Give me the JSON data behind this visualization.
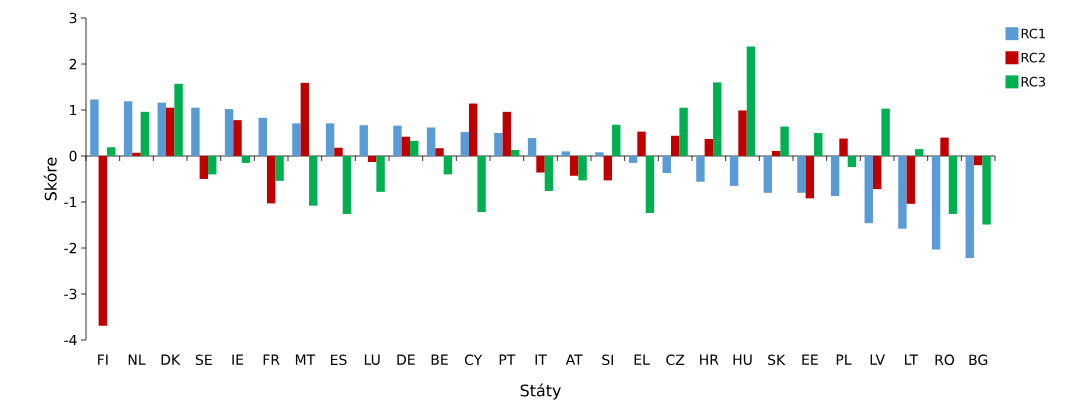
{
  "chart_data": {
    "type": "bar",
    "xlabel": "Státy",
    "ylabel": "Skóre",
    "categories": [
      "FI",
      "NL",
      "DK",
      "SE",
      "IE",
      "FR",
      "MT",
      "ES",
      "LU",
      "DE",
      "BE",
      "CY",
      "PT",
      "IT",
      "AT",
      "SI",
      "EL",
      "CZ",
      "HR",
      "HU",
      "SK",
      "EE",
      "PL",
      "LV",
      "LT",
      "RO",
      "BG"
    ],
    "series": [
      {
        "name": "RC1",
        "color": "#5b9bd5",
        "values": [
          1.23,
          1.19,
          1.16,
          1.05,
          1.02,
          0.83,
          0.71,
          0.71,
          0.67,
          0.66,
          0.62,
          0.52,
          0.5,
          0.39,
          0.1,
          0.08,
          -0.15,
          -0.37,
          -0.56,
          -0.65,
          -0.8,
          -0.8,
          -0.87,
          -1.46,
          -1.58,
          -2.03,
          -2.22
        ]
      },
      {
        "name": "RC2",
        "color": "#c00000",
        "values": [
          -3.69,
          0.07,
          1.05,
          -0.5,
          0.78,
          -1.03,
          1.59,
          0.18,
          -0.13,
          0.42,
          0.17,
          1.14,
          0.96,
          -0.36,
          -0.43,
          -0.53,
          0.53,
          0.44,
          0.37,
          0.99,
          0.11,
          -0.92,
          0.38,
          -0.72,
          -1.04,
          0.4,
          -0.2
        ]
      },
      {
        "name": "RC3",
        "color": "#00b050",
        "values": [
          0.19,
          0.96,
          1.57,
          -0.4,
          -0.15,
          -0.54,
          -1.08,
          -1.26,
          -0.78,
          0.33,
          -0.4,
          -1.22,
          0.13,
          -0.76,
          -0.53,
          0.68,
          -1.24,
          1.05,
          1.6,
          2.38,
          0.64,
          0.5,
          -0.24,
          1.03,
          0.15,
          -1.26,
          -1.49
        ]
      }
    ],
    "ylim": [
      -4,
      3
    ],
    "yticks": [
      -4,
      -3,
      -2,
      -1,
      0,
      1,
      2,
      3
    ],
    "legend": "right"
  }
}
